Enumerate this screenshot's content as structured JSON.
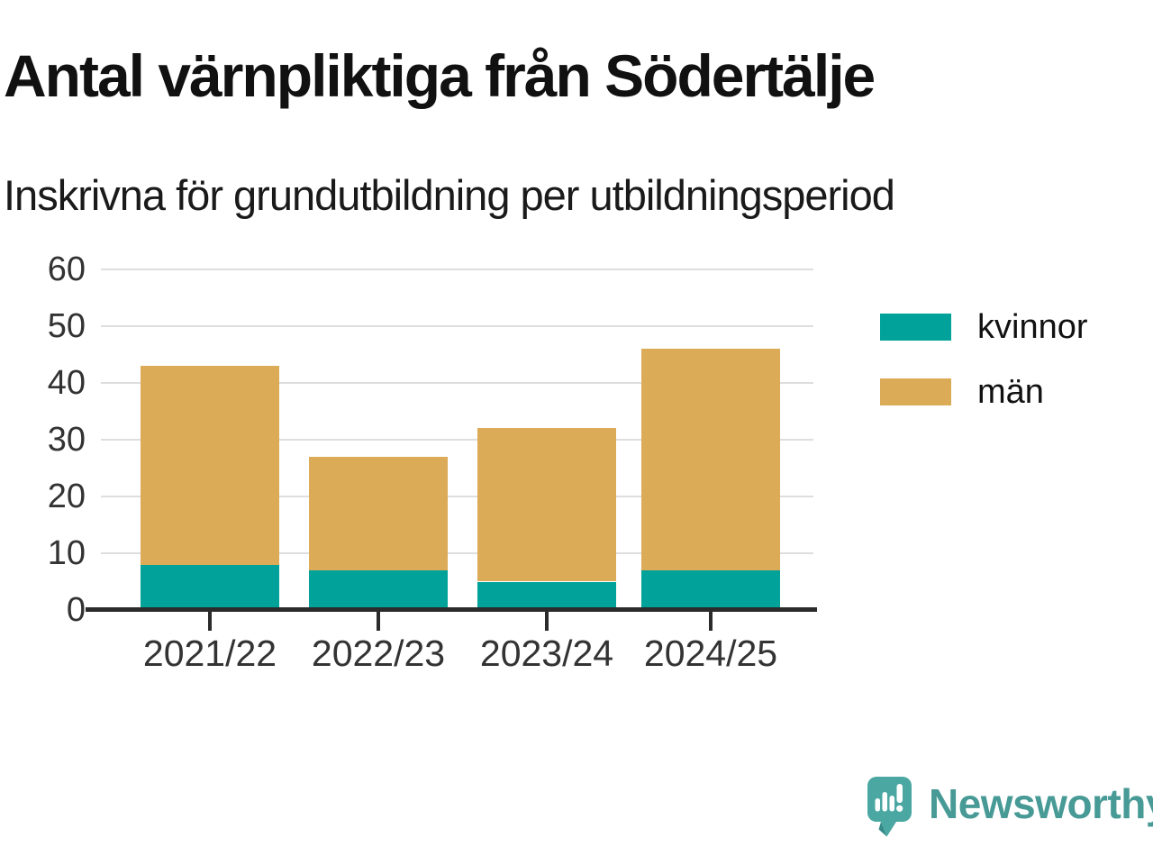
{
  "header": {
    "title": "Antal värnpliktiga från Södertälje",
    "subtitle": "Inskrivna för grundutbildning per utbildningsperiod"
  },
  "chart_data": {
    "type": "bar",
    "stacked": true,
    "title": "Antal värnpliktiga från Södertälje",
    "subtitle": "Inskrivna för grundutbildning per utbildningsperiod",
    "categories": [
      "2021/22",
      "2022/23",
      "2023/24",
      "2024/25"
    ],
    "series": [
      {
        "name": "kvinnor",
        "color": "#00a29a",
        "values": [
          8,
          7,
          5,
          7
        ]
      },
      {
        "name": "män",
        "color": "#dbab57",
        "values": [
          35,
          20,
          27,
          39
        ]
      }
    ],
    "stack_totals": [
      43,
      27,
      32,
      46
    ],
    "xlabel": "",
    "ylabel": "",
    "ylim": [
      0,
      60
    ],
    "yticks": [
      0,
      10,
      20,
      30,
      40,
      50,
      60
    ],
    "grid": true,
    "legend_position": "right"
  },
  "legend": {
    "items": [
      {
        "label": "kvinnor",
        "color": "#00a29a"
      },
      {
        "label": "män",
        "color": "#dbab57"
      }
    ]
  },
  "colors": {
    "kvinnor": "#00a29a",
    "man": "#dbab57",
    "axis": "#2b2b2b",
    "gridline": "#dedede",
    "tick_text": "#333333",
    "brand_teal": "#479a96"
  },
  "footer": {
    "brand": "Newsworthy",
    "logo_icon": "newsworthy-speech-bubble-chart-icon"
  }
}
